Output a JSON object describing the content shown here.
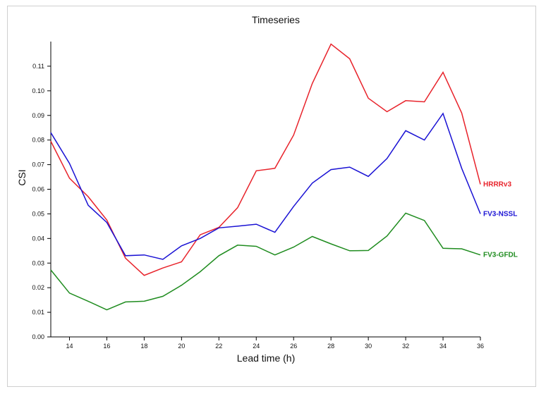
{
  "chart_data": {
    "type": "line",
    "title": "Timeseries",
    "xlabel": "Lead time (h)",
    "ylabel": "CSI",
    "xlim": [
      13,
      36
    ],
    "ylim": [
      0,
      0.12
    ],
    "x_ticks": [
      14,
      16,
      18,
      20,
      22,
      24,
      26,
      28,
      30,
      32,
      34,
      36
    ],
    "y_ticks": [
      0.0,
      0.01,
      0.02,
      0.03,
      0.04,
      0.05,
      0.06,
      0.07,
      0.08,
      0.09,
      0.1,
      0.11
    ],
    "x_tick_labels": [
      "14",
      "16",
      "18",
      "20",
      "22",
      "24",
      "26",
      "28",
      "30",
      "32",
      "34",
      "36"
    ],
    "y_tick_labels": [
      "0.00",
      "0.01",
      "0.02",
      "0.03",
      "0.04",
      "0.05",
      "0.06",
      "0.07",
      "0.08",
      "0.09",
      "0.10",
      "0.11"
    ],
    "grid": false,
    "legend": "inline-right",
    "x": [
      13,
      14,
      15,
      16,
      17,
      18,
      19,
      20,
      21,
      22,
      23,
      24,
      25,
      26,
      27,
      28,
      29,
      30,
      31,
      32,
      33,
      34,
      35,
      36
    ],
    "series": [
      {
        "name": "HRRRv3",
        "color": "#e8232b",
        "values": [
          0.0795,
          0.0645,
          0.057,
          0.0475,
          0.032,
          0.025,
          0.028,
          0.0305,
          0.0415,
          0.0445,
          0.0525,
          0.0675,
          0.0685,
          0.082,
          0.103,
          0.119,
          0.113,
          0.097,
          0.0915,
          0.096,
          0.0955,
          0.1075,
          0.091,
          0.062
        ]
      },
      {
        "name": "FV3-NSSL",
        "color": "#1a12d4",
        "values": [
          0.083,
          0.0705,
          0.0535,
          0.0465,
          0.033,
          0.0333,
          0.0315,
          0.037,
          0.04,
          0.0443,
          0.045,
          0.0458,
          0.0425,
          0.053,
          0.0625,
          0.068,
          0.069,
          0.0652,
          0.0725,
          0.0838,
          0.08,
          0.0908,
          0.0685,
          0.05
        ]
      },
      {
        "name": "FV3-GFDL",
        "color": "#1f8c1f",
        "values": [
          0.0272,
          0.0178,
          0.0145,
          0.011,
          0.0142,
          0.0145,
          0.0165,
          0.021,
          0.0265,
          0.033,
          0.0373,
          0.0368,
          0.0333,
          0.0365,
          0.0408,
          0.0378,
          0.035,
          0.0351,
          0.041,
          0.0503,
          0.0473,
          0.036,
          0.0358,
          0.0333
        ]
      }
    ]
  }
}
